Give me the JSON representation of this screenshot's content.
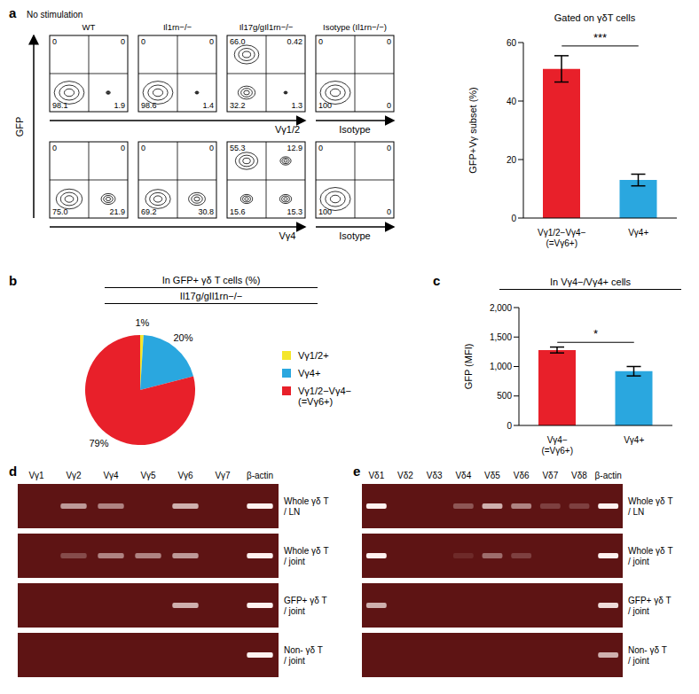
{
  "panel_letters": [
    "a",
    "b",
    "c",
    "d",
    "e"
  ],
  "flow": {
    "header": "No stimulation",
    "columns": [
      "WT",
      "Il1rn−/−",
      "Il17g/gIl1rn−/−",
      "Isotype (Il1rn−/−)"
    ],
    "y_axis": "GFP",
    "rows": [
      {
        "x_axis": "Vγ1/2",
        "isotype_axis": "Isotype",
        "plots": [
          {
            "values": [
              0,
              0,
              98.1,
              1.9
            ],
            "labels": [
              "0",
              "0",
              "98.1",
              "1.9"
            ]
          },
          {
            "values": [
              0,
              0,
              98.6,
              1.4
            ],
            "labels": [
              "0",
              "0",
              "98.6",
              "1.4"
            ]
          },
          {
            "values": [
              66.0,
              0.42,
              32.2,
              1.3
            ],
            "labels": [
              "66.0",
              "0.42",
              "32.2",
              "1.3"
            ]
          },
          {
            "values": [
              0,
              0,
              100,
              0
            ],
            "labels": [
              "0",
              "0",
              "100",
              "0"
            ]
          }
        ]
      },
      {
        "x_axis": "Vγ4",
        "isotype_axis": "Isotype",
        "plots": [
          {
            "values": [
              0,
              0,
              75.0,
              21.9
            ],
            "labels": [
              "0",
              "0",
              "75.0",
              "21.9"
            ]
          },
          {
            "values": [
              0,
              0,
              69.2,
              30.8
            ],
            "labels": [
              "0",
              "0",
              "69.2",
              "30.8"
            ]
          },
          {
            "values": [
              55.3,
              12.9,
              15.6,
              15.3
            ],
            "labels": [
              "55.3",
              "12.9",
              "15.6",
              "15.3"
            ]
          },
          {
            "values": [
              0,
              0,
              100,
              0
            ],
            "labels": [
              "0",
              "0",
              "100",
              "0"
            ]
          }
        ]
      }
    ]
  },
  "chart_data": [
    {
      "type": "bar",
      "title": "Gated on γδT cells",
      "y_label": "GFP+Vγ subset (%)",
      "categories": [
        "Vγ1/2−Vγ4− (=Vγ6+)",
        "Vγ4+"
      ],
      "values": [
        51,
        13
      ],
      "errors": [
        4.5,
        2
      ],
      "colors": [
        "#e8202a",
        "#2aa7df"
      ],
      "ylim": [
        0,
        60
      ],
      "yticks": [
        0,
        20,
        40,
        60
      ],
      "significance": "***"
    },
    {
      "type": "pie",
      "title": "In GFP+ γδ T cells (%)",
      "subtitle": "Il17g/gIl1rn−/−",
      "categories": [
        "Vγ1/2+",
        "Vγ4+",
        "Vγ1/2−Vγ4− (=Vγ6+)"
      ],
      "values": [
        1,
        20,
        79
      ],
      "value_labels": [
        "1%",
        "20%",
        "79%"
      ],
      "colors": [
        "#f4e62a",
        "#2aa7df",
        "#e8202a"
      ]
    },
    {
      "type": "bar",
      "title": "In Vγ4−/Vγ4+ cells",
      "y_label": "GFP (MFI)",
      "categories": [
        "Vγ4− (=Vγ6+)",
        "Vγ4+"
      ],
      "values": [
        1280,
        920
      ],
      "errors": [
        50,
        80
      ],
      "colors": [
        "#e8202a",
        "#2aa7df"
      ],
      "ylim": [
        0,
        2000
      ],
      "yticks": [
        0,
        500,
        {
          "value": 1000,
          "label": "1,000"
        },
        {
          "value": 1500,
          "label": "1,500"
        },
        {
          "value": 2000,
          "label": "2,000"
        }
      ],
      "significance": "*"
    }
  ],
  "gels": [
    {
      "lanes": [
        "Vγ1",
        "Vγ2",
        "Vγ4",
        "Vγ5",
        "Vγ6",
        "Vγ7",
        "β-actin"
      ],
      "rows": [
        {
          "label": [
            "Whole γδ T",
            "/ LN"
          ],
          "bands": [
            0,
            0.6,
            0.5,
            0,
            0.7,
            0,
            1
          ]
        },
        {
          "label": [
            "Whole γδ T",
            "/ joint"
          ],
          "bands": [
            0,
            0.25,
            0.5,
            0.5,
            0.6,
            0,
            1
          ]
        },
        {
          "label": [
            "GFP+ γδ T",
            "/ joint"
          ],
          "bands": [
            0,
            0,
            0,
            0,
            0.7,
            0,
            1
          ]
        },
        {
          "label": [
            "Non- γδ T",
            "/ joint"
          ],
          "bands": [
            0,
            0,
            0,
            0,
            0,
            0,
            1
          ]
        }
      ]
    },
    {
      "lanes": [
        "Vδ1",
        "Vδ2",
        "Vδ3",
        "Vδ4",
        "Vδ5",
        "Vδ6",
        "Vδ7",
        "Vδ8",
        "β-actin"
      ],
      "rows": [
        {
          "label": [
            "Whole γδ T",
            "/ LN"
          ],
          "bands": [
            1,
            0,
            0,
            0.3,
            0.7,
            0.5,
            0.2,
            0.2,
            1
          ]
        },
        {
          "label": [
            "Whole γδ T",
            "/ joint"
          ],
          "bands": [
            1,
            0,
            0,
            0.1,
            0.4,
            0.2,
            0,
            0,
            1
          ]
        },
        {
          "label": [
            "GFP+ γδ T",
            "/ joint"
          ],
          "bands": [
            0.7,
            0,
            0,
            0,
            0,
            0,
            0,
            0,
            0.9
          ]
        },
        {
          "label": [
            "Non- γδ T",
            "/ joint"
          ],
          "bands": [
            0,
            0,
            0,
            0,
            0,
            0,
            0,
            0,
            0.7
          ]
        }
      ]
    }
  ]
}
